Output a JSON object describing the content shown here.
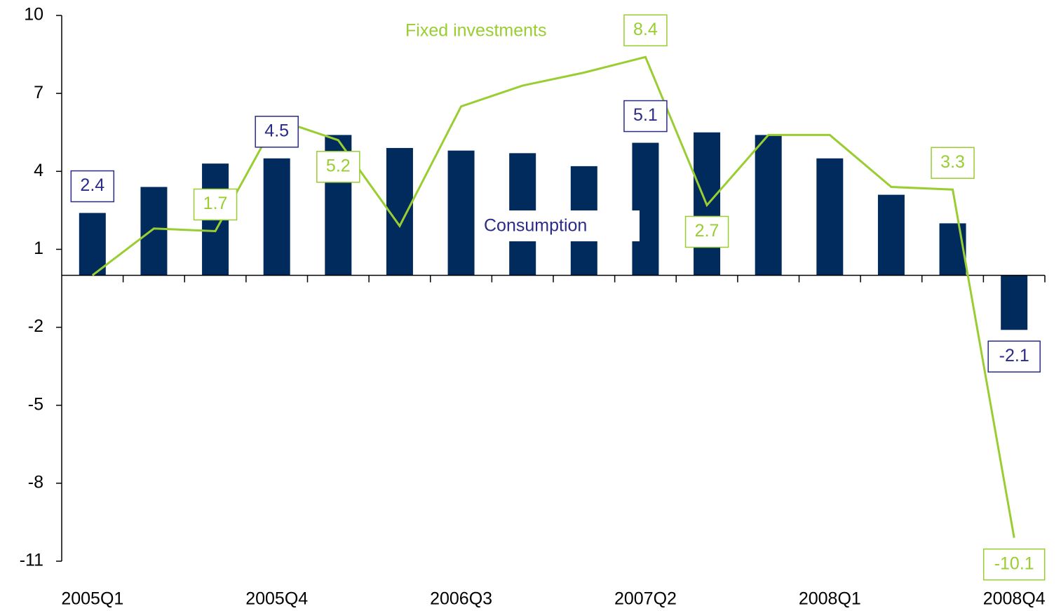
{
  "chart_data": {
    "type": "bar-line",
    "categories": [
      "2005Q1",
      null,
      null,
      "2005Q4",
      null,
      null,
      "2006Q3",
      null,
      null,
      "2007Q2",
      null,
      null,
      "2008Q1",
      null,
      null,
      "2008Q4"
    ],
    "ylim": [
      -11,
      10
    ],
    "yticks": [
      10,
      7,
      4,
      1,
      -2,
      -5,
      -8,
      -11
    ],
    "series": [
      {
        "name": "Consumption",
        "type": "bar",
        "color": "#002b5c",
        "label_color": "#2b2b8a",
        "values": [
          2.4,
          3.4,
          4.3,
          4.5,
          5.4,
          4.9,
          4.8,
          4.7,
          4.2,
          5.1,
          5.5,
          5.4,
          4.5,
          3.1,
          2.0,
          -2.1
        ],
        "value_labels": [
          "2.4",
          null,
          null,
          "4.5",
          null,
          null,
          null,
          null,
          null,
          "5.1",
          null,
          null,
          null,
          null,
          null,
          "-2.1"
        ]
      },
      {
        "name": "Fixed investments",
        "type": "line",
        "color": "#9acd32",
        "label_color": "#9acd32",
        "values": [
          0.0,
          1.8,
          1.7,
          6.0,
          5.2,
          1.9,
          6.5,
          7.3,
          7.8,
          8.4,
          2.7,
          5.4,
          5.4,
          3.4,
          3.3,
          -10.1
        ],
        "value_labels": [
          null,
          null,
          "1.7",
          null,
          "5.2",
          null,
          null,
          null,
          null,
          "8.4",
          "2.7",
          null,
          null,
          null,
          "3.3",
          "-10.1"
        ]
      }
    ]
  }
}
